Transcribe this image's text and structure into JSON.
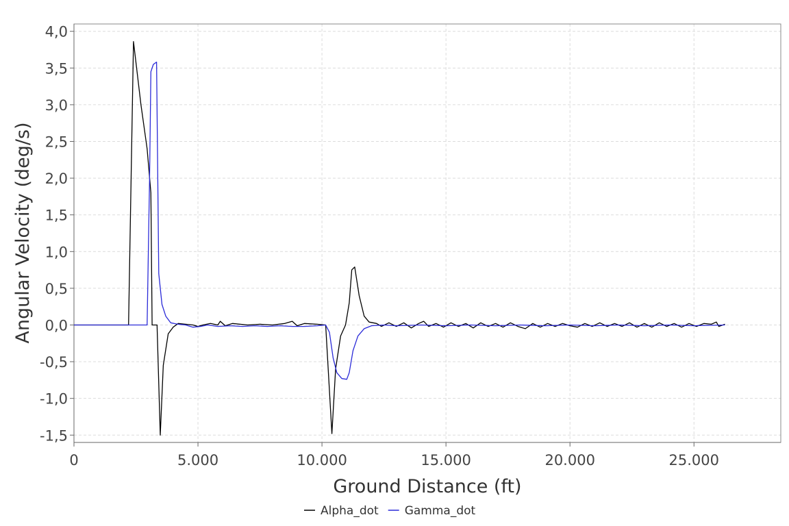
{
  "chart_data": {
    "type": "line",
    "title": "",
    "xlabel": "Ground Distance (ft)",
    "ylabel": "Angular Velocity (deg/s)",
    "xlim": [
      0,
      28500
    ],
    "ylim": [
      -1.6,
      4.1
    ],
    "x_ticks": [
      0,
      5000,
      10000,
      15000,
      20000,
      25000
    ],
    "x_tick_labels": [
      "0",
      "5.000",
      "10.000",
      "15.000",
      "20.000",
      "25.000"
    ],
    "y_ticks": [
      -1.5,
      -1.0,
      -0.5,
      0.0,
      0.5,
      1.0,
      1.5,
      2.0,
      2.5,
      3.0,
      3.5,
      4.0
    ],
    "y_tick_labels": [
      "-1,5",
      "-1,0",
      "-0,5",
      "0,0",
      "0,5",
      "1,0",
      "1,5",
      "2,0",
      "2,5",
      "3,0",
      "3,5",
      "4,0"
    ],
    "grid": true,
    "legend_position": "bottom-center",
    "series": [
      {
        "name": "Alpha_dot",
        "color": "#000000",
        "points": [
          [
            0,
            0
          ],
          [
            2200,
            0
          ],
          [
            2400,
            3.86
          ],
          [
            2700,
            3.0
          ],
          [
            2950,
            2.4
          ],
          [
            3100,
            1.8
          ],
          [
            3150,
            0
          ],
          [
            3350,
            0
          ],
          [
            3480,
            -1.5
          ],
          [
            3600,
            -0.55
          ],
          [
            3800,
            -0.12
          ],
          [
            4000,
            -0.03
          ],
          [
            4200,
            0.02
          ],
          [
            4500,
            0.01
          ],
          [
            4800,
            0.0
          ],
          [
            5000,
            -0.02
          ],
          [
            5200,
            0.0
          ],
          [
            5500,
            0.02
          ],
          [
            5800,
            0.0
          ],
          [
            5900,
            0.05
          ],
          [
            6100,
            -0.01
          ],
          [
            6400,
            0.02
          ],
          [
            6700,
            0.01
          ],
          [
            7000,
            0.0
          ],
          [
            7500,
            0.01
          ],
          [
            8000,
            0.0
          ],
          [
            8500,
            0.02
          ],
          [
            8800,
            0.05
          ],
          [
            9000,
            -0.01
          ],
          [
            9300,
            0.02
          ],
          [
            9800,
            0.01
          ],
          [
            10150,
            0.0
          ],
          [
            10400,
            -1.48
          ],
          [
            10550,
            -0.6
          ],
          [
            10750,
            -0.15
          ],
          [
            10950,
            0.0
          ],
          [
            11100,
            0.3
          ],
          [
            11200,
            0.75
          ],
          [
            11320,
            0.79
          ],
          [
            11500,
            0.4
          ],
          [
            11700,
            0.12
          ],
          [
            11900,
            0.04
          ],
          [
            12200,
            0.02
          ],
          [
            12400,
            -0.02
          ],
          [
            12700,
            0.03
          ],
          [
            13000,
            -0.02
          ],
          [
            13300,
            0.03
          ],
          [
            13600,
            -0.04
          ],
          [
            13900,
            0.02
          ],
          [
            14100,
            0.05
          ],
          [
            14300,
            -0.02
          ],
          [
            14600,
            0.02
          ],
          [
            14900,
            -0.03
          ],
          [
            15200,
            0.03
          ],
          [
            15500,
            -0.02
          ],
          [
            15800,
            0.02
          ],
          [
            16100,
            -0.04
          ],
          [
            16400,
            0.03
          ],
          [
            16700,
            -0.02
          ],
          [
            17000,
            0.02
          ],
          [
            17300,
            -0.03
          ],
          [
            17600,
            0.03
          ],
          [
            17900,
            -0.02
          ],
          [
            18200,
            -0.05
          ],
          [
            18500,
            0.02
          ],
          [
            18800,
            -0.03
          ],
          [
            19100,
            0.02
          ],
          [
            19400,
            -0.02
          ],
          [
            19700,
            0.02
          ],
          [
            20000,
            -0.01
          ],
          [
            20300,
            -0.03
          ],
          [
            20600,
            0.02
          ],
          [
            20900,
            -0.02
          ],
          [
            21200,
            0.03
          ],
          [
            21500,
            -0.02
          ],
          [
            21800,
            0.02
          ],
          [
            22100,
            -0.02
          ],
          [
            22400,
            0.03
          ],
          [
            22700,
            -0.03
          ],
          [
            23000,
            0.02
          ],
          [
            23300,
            -0.03
          ],
          [
            23600,
            0.03
          ],
          [
            23900,
            -0.02
          ],
          [
            24200,
            0.02
          ],
          [
            24500,
            -0.03
          ],
          [
            24800,
            0.02
          ],
          [
            25100,
            -0.02
          ],
          [
            25400,
            0.02
          ],
          [
            25700,
            0.01
          ],
          [
            25900,
            0.04
          ],
          [
            26000,
            -0.02
          ],
          [
            26250,
            0.01
          ]
        ]
      },
      {
        "name": "Gamma_dot",
        "color": "#2a2ad8",
        "points": [
          [
            0,
            0
          ],
          [
            2950,
            0
          ],
          [
            3050,
            2.0
          ],
          [
            3100,
            3.45
          ],
          [
            3200,
            3.55
          ],
          [
            3330,
            3.58
          ],
          [
            3420,
            0.7
          ],
          [
            3550,
            0.28
          ],
          [
            3700,
            0.12
          ],
          [
            3900,
            0.03
          ],
          [
            4200,
            0.01
          ],
          [
            4500,
            0.0
          ],
          [
            4800,
            -0.03
          ],
          [
            5100,
            -0.02
          ],
          [
            5400,
            0.0
          ],
          [
            5800,
            -0.02
          ],
          [
            6300,
            -0.01
          ],
          [
            6800,
            -0.02
          ],
          [
            7300,
            -0.01
          ],
          [
            7800,
            -0.02
          ],
          [
            8300,
            -0.01
          ],
          [
            8800,
            -0.02
          ],
          [
            9300,
            -0.02
          ],
          [
            9800,
            -0.01
          ],
          [
            10150,
            0.0
          ],
          [
            10300,
            -0.1
          ],
          [
            10450,
            -0.45
          ],
          [
            10600,
            -0.65
          ],
          [
            10800,
            -0.73
          ],
          [
            11000,
            -0.74
          ],
          [
            11100,
            -0.65
          ],
          [
            11250,
            -0.35
          ],
          [
            11450,
            -0.15
          ],
          [
            11700,
            -0.05
          ],
          [
            12000,
            -0.01
          ],
          [
            12500,
            0.0
          ],
          [
            13000,
            -0.01
          ],
          [
            14000,
            0.0
          ],
          [
            15000,
            -0.01
          ],
          [
            16000,
            0.0
          ],
          [
            17000,
            -0.01
          ],
          [
            18000,
            0.0
          ],
          [
            19000,
            -0.01
          ],
          [
            20000,
            0.0
          ],
          [
            21000,
            -0.01
          ],
          [
            22000,
            0.0
          ],
          [
            23000,
            -0.01
          ],
          [
            24000,
            0.0
          ],
          [
            25000,
            -0.01
          ],
          [
            26250,
            0.0
          ]
        ]
      }
    ]
  }
}
